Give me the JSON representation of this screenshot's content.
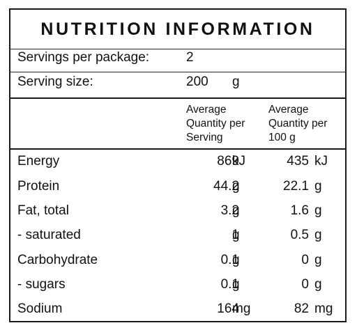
{
  "title": "NUTRITION INFORMATION",
  "servings": {
    "per_package_label": "Servings per package:",
    "per_package_value": "2",
    "size_label": "Serving size:",
    "size_value": "200",
    "size_unit": "g"
  },
  "columns": {
    "per_serving": [
      "Average",
      "Quantity per",
      "Serving"
    ],
    "per_100g": [
      "Average",
      "Quantity per",
      "100 g"
    ]
  },
  "rows": [
    {
      "name": "Energy",
      "serving": "869",
      "serving_unit": "kJ",
      "per100": "435",
      "per100_unit": "kJ"
    },
    {
      "name": "Protein",
      "serving": "44.2",
      "serving_unit": "g",
      "per100": "22.1",
      "per100_unit": "g"
    },
    {
      "name": "Fat, total",
      "serving": "3.2",
      "serving_unit": "g",
      "per100": "1.6",
      "per100_unit": "g"
    },
    {
      "name": "- saturated",
      "serving": "1",
      "serving_unit": "g",
      "per100": "0.5",
      "per100_unit": "g"
    },
    {
      "name": "Carbohydrate",
      "serving": "0.1",
      "serving_unit": "g",
      "per100": "0",
      "per100_unit": "g"
    },
    {
      "name": "- sugars",
      "serving": "0.1",
      "serving_unit": "g",
      "per100": "0",
      "per100_unit": "g"
    },
    {
      "name": "Sodium",
      "serving": "164",
      "serving_unit": "mg",
      "per100": "82",
      "per100_unit": "mg"
    }
  ]
}
